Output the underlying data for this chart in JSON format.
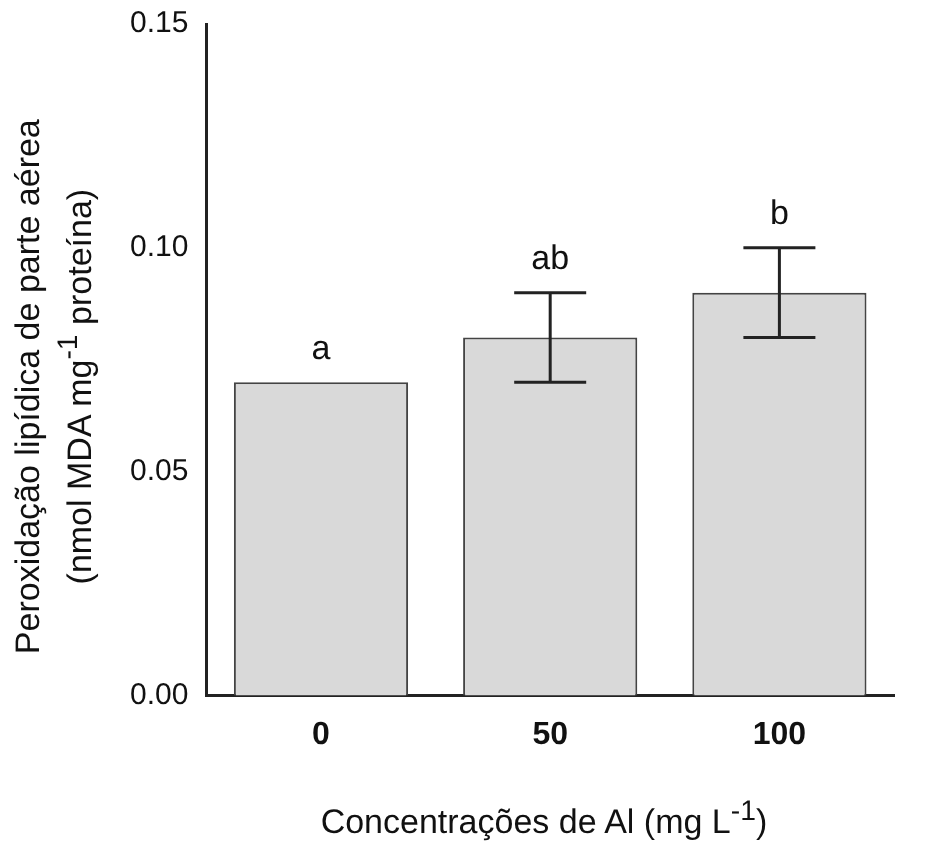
{
  "chart_data": {
    "type": "bar",
    "xlabel": "Concentrações de Al (mg L$^{-1}$)",
    "ylabel": "Peroxidação lipídica de parte aérea\n(nmol MDA mg$^{-1}$ proteína)",
    "categories": [
      "0",
      "50",
      "100"
    ],
    "values": [
      0.07,
      0.08,
      0.09
    ],
    "color": "#d9d9d9",
    "errors": [
      null,
      0.01,
      0.01
    ],
    "ylim": [
      0,
      0.15
    ],
    "yticks": [
      {
        "value": 0,
        "label": "0.00"
      },
      {
        "value": 0.05,
        "label": "0.05"
      },
      {
        "value": 0.1,
        "label": "0.10"
      },
      {
        "value": 0.15,
        "label": "0.15"
      }
    ],
    "grid": false,
    "legend": false,
    "annotations": [
      {
        "text": "a",
        "x": "0",
        "y": 0.07
      },
      {
        "text": "ab",
        "x": "50",
        "y": 0.09
      },
      {
        "text": "b",
        "x": "100",
        "y": 0.1
      }
    ]
  }
}
